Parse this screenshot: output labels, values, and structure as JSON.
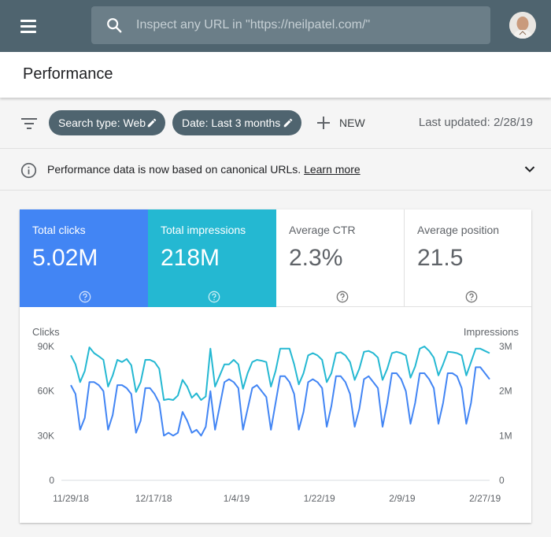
{
  "topbar": {
    "search_placeholder": "Inspect any URL in \"https://neilpatel.com/\"",
    "menu_icon": "menu-icon",
    "search_icon": "search-icon"
  },
  "page": {
    "title": "Performance"
  },
  "filters": {
    "chips": [
      {
        "label": "Search type: Web",
        "icon": "edit-icon"
      },
      {
        "label": "Date: Last 3 months",
        "icon": "edit-icon"
      }
    ],
    "new_label": "NEW",
    "last_updated": "Last updated: 2/28/19"
  },
  "info": {
    "message": "Performance data is now based on canonical URLs.",
    "link": "Learn more"
  },
  "metrics": [
    {
      "label": "Total clicks",
      "value": "5.02M"
    },
    {
      "label": "Total impressions",
      "value": "218M"
    },
    {
      "label": "Average CTR",
      "value": "2.3%"
    },
    {
      "label": "Average position",
      "value": "21.5"
    }
  ],
  "colors": {
    "header": "#4f646f",
    "clicks": "#4285f4",
    "impressions": "#24b8d2"
  },
  "chart_data": {
    "type": "line",
    "ylabel_left": "Clicks",
    "ylabel_right": "Impressions",
    "y_left_ticks": [
      "90K",
      "60K",
      "30K",
      "0"
    ],
    "y_right_ticks": [
      "3M",
      "2M",
      "1M",
      "0"
    ],
    "ylim_left": [
      0,
      90000
    ],
    "ylim_right": [
      0,
      3000000
    ],
    "x_ticks": [
      "11/29/18",
      "12/17/18",
      "1/4/19",
      "1/22/19",
      "2/9/19",
      "2/27/19"
    ],
    "x_range": [
      "11/29/18",
      "2/28/19"
    ],
    "series": [
      {
        "name": "Clicks",
        "axis": "left",
        "values": [
          64000,
          58000,
          34000,
          42000,
          66000,
          66000,
          64000,
          60000,
          34000,
          44000,
          64000,
          64000,
          62000,
          58000,
          32000,
          40000,
          62000,
          62000,
          58000,
          52000,
          30000,
          32000,
          30000,
          32000,
          46000,
          40000,
          32000,
          34000,
          30000,
          36000,
          60000,
          34000,
          50000,
          66000,
          68000,
          66000,
          62000,
          34000,
          48000,
          62000,
          64000,
          60000,
          56000,
          34000,
          52000,
          70000,
          70000,
          66000,
          58000,
          34000,
          46000,
          66000,
          68000,
          66000,
          62000,
          36000,
          50000,
          70000,
          70000,
          66000,
          58000,
          36000,
          48000,
          68000,
          70000,
          66000,
          62000,
          36000,
          52000,
          72000,
          72000,
          68000,
          60000,
          38000,
          52000,
          72000,
          72000,
          68000,
          62000,
          38000,
          52000,
          72000,
          72000,
          70000,
          62000,
          38000,
          52000,
          76000,
          76000,
          72000,
          68000
        ]
      },
      {
        "name": "Impressions",
        "axis": "right",
        "values": [
          2800000,
          2600000,
          2200000,
          2450000,
          2980000,
          2850000,
          2780000,
          2700000,
          2100000,
          2350000,
          2700000,
          2650000,
          2720000,
          2580000,
          1980000,
          2200000,
          2700000,
          2700000,
          2650000,
          2500000,
          1800000,
          1820000,
          1800000,
          1900000,
          2250000,
          2100000,
          1850000,
          1950000,
          1800000,
          1880000,
          2950000,
          2100000,
          2350000,
          2600000,
          2600000,
          2700000,
          2600000,
          2050000,
          2400000,
          2650000,
          2700000,
          2680000,
          2650000,
          2100000,
          2450000,
          2950000,
          2950000,
          2950000,
          2600000,
          2150000,
          2400000,
          2800000,
          2850000,
          2800000,
          2700000,
          2200000,
          2400000,
          2850000,
          2870000,
          2800000,
          2650000,
          2250000,
          2500000,
          2880000,
          2900000,
          2850000,
          2750000,
          2250000,
          2500000,
          2850000,
          2880000,
          2850000,
          2800000,
          2300000,
          2550000,
          2950000,
          3000000,
          2900000,
          2750000,
          2350000,
          2600000,
          2880000,
          2870000,
          2850000,
          2800000,
          2350000,
          2650000,
          2950000,
          2950000,
          2900000,
          2850000
        ]
      }
    ],
    "grid": false,
    "legend": "none"
  }
}
